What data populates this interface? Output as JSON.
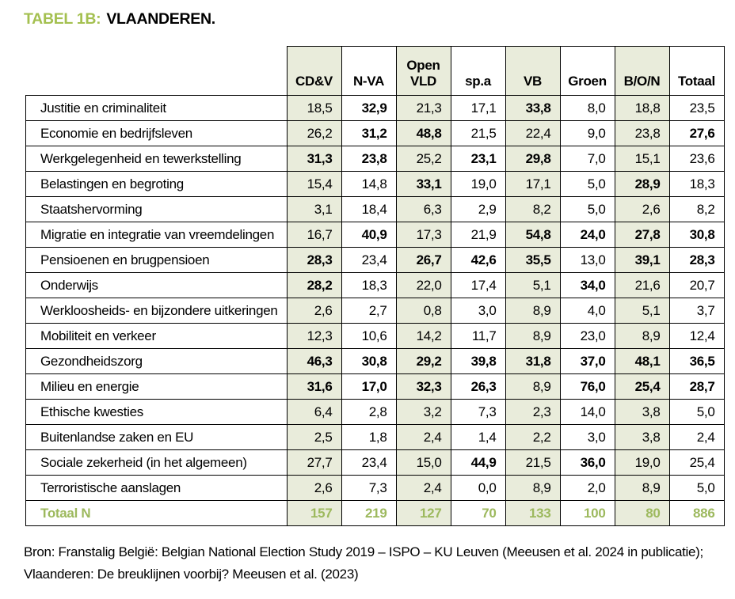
{
  "title": {
    "tag": "TABEL 1B:",
    "text": "VLAANDEREN."
  },
  "colors": {
    "accent_green": "#a4c050",
    "total_green": "#9db95e",
    "shaded_cell_bg": "#e9ecdb",
    "border": "#000000"
  },
  "table": {
    "columns": [
      {
        "label": "CD&V",
        "lines": [
          "CD&V"
        ],
        "shaded": true
      },
      {
        "label": "N-VA",
        "lines": [
          "N-VA"
        ],
        "shaded": false
      },
      {
        "label": "Open VLD",
        "lines": [
          "Open",
          "VLD"
        ],
        "shaded": true
      },
      {
        "label": "sp.a",
        "lines": [
          "sp.a"
        ],
        "shaded": false
      },
      {
        "label": "VB",
        "lines": [
          "VB"
        ],
        "shaded": true
      },
      {
        "label": "Groen",
        "lines": [
          "Groen"
        ],
        "shaded": false
      },
      {
        "label": "B/O/N",
        "lines": [
          "B/O/N"
        ],
        "shaded": true
      },
      {
        "label": "Totaal",
        "lines": [
          "Totaal"
        ],
        "shaded": false
      }
    ],
    "rows": [
      {
        "label": "Justitie en criminaliteit",
        "values": [
          "18,5",
          "32,9",
          "21,3",
          "17,1",
          "33,8",
          "8,0",
          "18,8",
          "23,5"
        ],
        "bold": [
          false,
          true,
          false,
          false,
          true,
          false,
          false,
          false
        ]
      },
      {
        "label": "Economie en bedrijfsleven",
        "values": [
          "26,2",
          "31,2",
          "48,8",
          "21,5",
          "22,4",
          "9,0",
          "23,8",
          "27,6"
        ],
        "bold": [
          false,
          true,
          true,
          false,
          false,
          false,
          false,
          true
        ]
      },
      {
        "label": "Werkgelegenheid en tewerkstelling",
        "values": [
          "31,3",
          "23,8",
          "25,2",
          "23,1",
          "29,8",
          "7,0",
          "15,1",
          "23,6"
        ],
        "bold": [
          true,
          true,
          false,
          true,
          true,
          false,
          false,
          false
        ]
      },
      {
        "label": "Belastingen en begroting",
        "values": [
          "15,4",
          "14,8",
          "33,1",
          "19,0",
          "17,1",
          "5,0",
          "28,9",
          "18,3"
        ],
        "bold": [
          false,
          false,
          true,
          false,
          false,
          false,
          true,
          false
        ]
      },
      {
        "label": "Staatshervorming",
        "values": [
          "3,1",
          "18,4",
          "6,3",
          "2,9",
          "8,2",
          "5,0",
          "2,6",
          "8,2"
        ],
        "bold": [
          false,
          false,
          false,
          false,
          false,
          false,
          false,
          false
        ]
      },
      {
        "label": "Migratie en integratie van vreemdelingen",
        "values": [
          "16,7",
          "40,9",
          "17,3",
          "21,9",
          "54,8",
          "24,0",
          "27,8",
          "30,8"
        ],
        "bold": [
          false,
          true,
          false,
          false,
          true,
          true,
          true,
          true
        ]
      },
      {
        "label": "Pensioenen en brugpensioen",
        "values": [
          "28,3",
          "23,4",
          "26,7",
          "42,6",
          "35,5",
          "13,0",
          "39,1",
          "28,3"
        ],
        "bold": [
          true,
          false,
          true,
          true,
          true,
          false,
          true,
          true
        ]
      },
      {
        "label": "Onderwijs",
        "values": [
          "28,2",
          "18,3",
          "22,0",
          "17,4",
          "5,1",
          "34,0",
          "21,6",
          "20,7"
        ],
        "bold": [
          true,
          false,
          false,
          false,
          false,
          true,
          false,
          false
        ]
      },
      {
        "label": "Werkloosheids- en bijzondere uitkeringen",
        "values": [
          "2,6",
          "2,7",
          "0,8",
          "3,0",
          "8,9",
          "4,0",
          "5,1",
          "3,7"
        ],
        "bold": [
          false,
          false,
          false,
          false,
          false,
          false,
          false,
          false
        ]
      },
      {
        "label": "Mobiliteit en verkeer",
        "values": [
          "12,3",
          "10,6",
          "14,2",
          "11,7",
          "8,9",
          "23,0",
          "8,9",
          "12,4"
        ],
        "bold": [
          false,
          false,
          false,
          false,
          false,
          false,
          false,
          false
        ]
      },
      {
        "label": "Gezondheidszorg",
        "values": [
          "46,3",
          "30,8",
          "29,2",
          "39,8",
          "31,8",
          "37,0",
          "48,1",
          "36,5"
        ],
        "bold": [
          true,
          true,
          true,
          true,
          true,
          true,
          true,
          true
        ]
      },
      {
        "label": "Milieu en energie",
        "values": [
          "31,6",
          "17,0",
          "32,3",
          "26,3",
          "8,9",
          "76,0",
          "25,4",
          "28,7"
        ],
        "bold": [
          true,
          true,
          true,
          true,
          false,
          true,
          true,
          true
        ]
      },
      {
        "label": "Ethische kwesties",
        "values": [
          "6,4",
          "2,8",
          "3,2",
          "7,3",
          "2,3",
          "14,0",
          "3,8",
          "5,0"
        ],
        "bold": [
          false,
          false,
          false,
          false,
          false,
          false,
          false,
          false
        ]
      },
      {
        "label": "Buitenlandse zaken en EU",
        "values": [
          "2,5",
          "1,8",
          "2,4",
          "1,4",
          "2,2",
          "3,0",
          "3,8",
          "2,4"
        ],
        "bold": [
          false,
          false,
          false,
          false,
          false,
          false,
          false,
          false
        ]
      },
      {
        "label": "Sociale zekerheid (in het algemeen)",
        "values": [
          "27,7",
          "23,4",
          "15,0",
          "44,9",
          "21,5",
          "36,0",
          "19,0",
          "25,4"
        ],
        "bold": [
          false,
          false,
          false,
          true,
          false,
          true,
          false,
          false
        ]
      },
      {
        "label": "Terroristische aanslagen",
        "values": [
          "2,6",
          "7,3",
          "2,4",
          "0,0",
          "8,9",
          "2,0",
          "8,9",
          "5,0"
        ],
        "bold": [
          false,
          false,
          false,
          false,
          false,
          false,
          false,
          false
        ]
      }
    ],
    "total_row": {
      "label": "Totaal N",
      "values": [
        "157",
        "219",
        "127",
        "70",
        "133",
        "100",
        "80",
        "886"
      ]
    }
  },
  "source_lines": [
    "Bron: Franstalig België: Belgian National Election Study 2019 – ISPO – KU Leuven (Meeusen et al. 2024 in publicatie);",
    "Vlaanderen: De breuklijnen voorbij? Meeusen et al. (2023)"
  ]
}
